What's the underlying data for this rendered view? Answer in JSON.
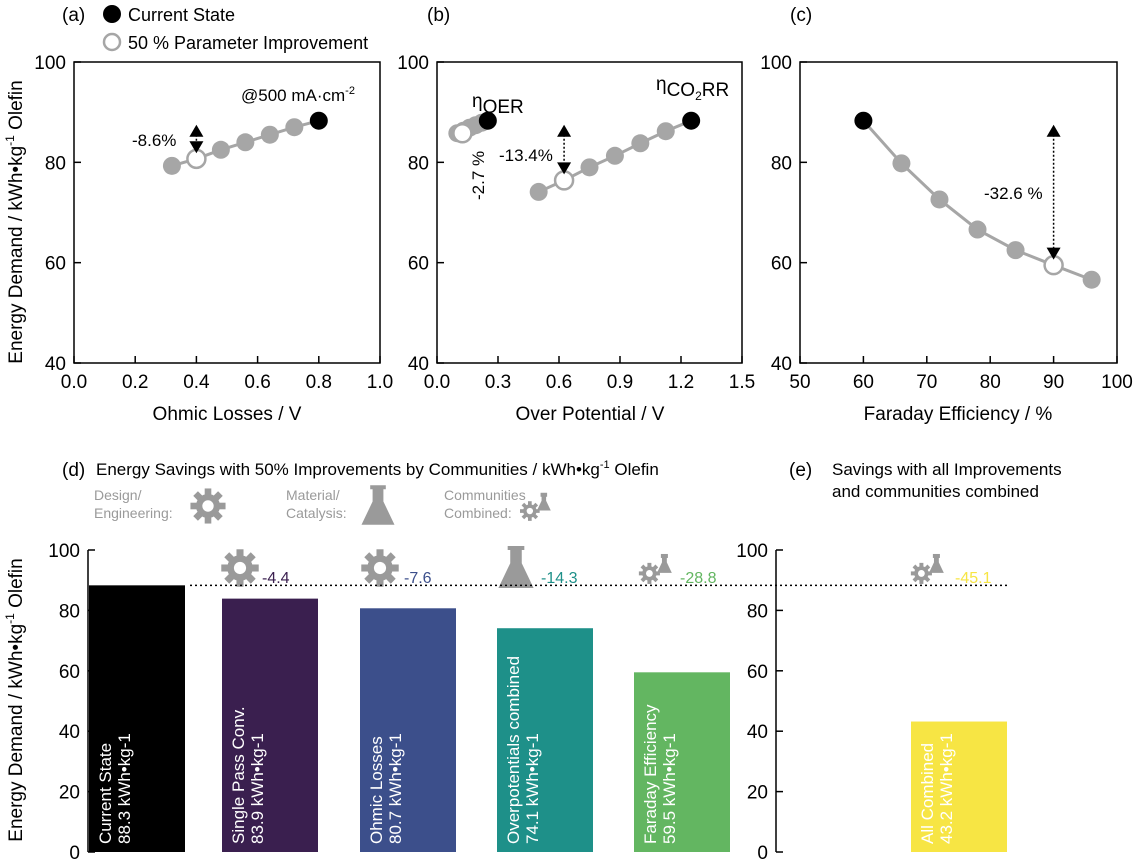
{
  "colors": {
    "gray": "#a6a6a6",
    "black": "#000000",
    "icon_gray": "#9a9a9a",
    "bar_current": "#000000",
    "bar_single_pass": "#3a1f4f",
    "bar_ohmic": "#3c4f8b",
    "bar_overpotentials": "#1e9089",
    "bar_faraday": "#63b661",
    "bar_all": "#f7e544"
  },
  "legend": {
    "current_state": "Current State",
    "improvement": "50 % Parameter Improvement"
  },
  "y_label": "Energy Demand / kWh•kg",
  "y_label_sup": "-1",
  "y_label_tail": " Olefin",
  "chart_data": [
    {
      "panel": "(a)",
      "type": "line",
      "xlabel": "Ohmic Losses / V",
      "xlim": [
        0.0,
        1.0
      ],
      "xticks": [
        "0.0",
        "0.2",
        "0.4",
        "0.6",
        "0.8",
        "1.0"
      ],
      "ylim": [
        40,
        100
      ],
      "yticks": [
        "40",
        "60",
        "80",
        "100"
      ],
      "series": [
        {
          "x": [
            0.32,
            0.4,
            0.48,
            0.56,
            0.64,
            0.72,
            0.8
          ],
          "y": [
            79.3,
            80.7,
            82.5,
            84.0,
            85.5,
            87.0,
            88.3
          ]
        }
      ],
      "current": {
        "x": 0.8,
        "y": 88.3
      },
      "improved": {
        "x": 0.4,
        "y": 80.7
      },
      "arrow_x": 0.4,
      "arrow_from": 87.5,
      "arrow_to": 81.8,
      "annotations": [
        "-8.6%",
        "@500 mA·cm",
        "-2"
      ]
    },
    {
      "panel": "(b)",
      "type": "line",
      "xlabel": "Over Potential / V",
      "xlim": [
        0.0,
        1.5
      ],
      "xticks": [
        "0.0",
        "0.3",
        "0.6",
        "0.9",
        "1.2",
        "1.5"
      ],
      "ylim": [
        40,
        100
      ],
      "yticks": [
        "40",
        "60",
        "80",
        "100"
      ],
      "series": [
        {
          "name": "ηOER",
          "x": [
            0.1,
            0.13,
            0.16,
            0.19,
            0.22,
            0.25
          ],
          "y": [
            85.8,
            86.3,
            86.9,
            87.4,
            87.9,
            88.3
          ]
        },
        {
          "name": "ηCO2RR",
          "x": [
            0.5,
            0.625,
            0.75,
            0.875,
            1.0,
            1.125,
            1.25
          ],
          "y": [
            74.1,
            76.4,
            79.0,
            81.3,
            83.8,
            86.2,
            88.3
          ]
        }
      ],
      "current": [
        {
          "x": 0.25,
          "y": 88.3
        },
        {
          "x": 1.25,
          "y": 88.3
        }
      ],
      "improved": [
        {
          "x": 0.125,
          "y": 85.8
        },
        {
          "x": 0.625,
          "y": 76.4
        }
      ],
      "arrow_x": 0.625,
      "arrow_from": 87.5,
      "arrow_to": 77.6,
      "annotations": [
        "-13.4%",
        "-2.7 %"
      ],
      "labels": {
        "oer_eta": "η",
        "oer_sub": "OER",
        "co2_eta": "η",
        "co2_sub_a": "CO",
        "co2_sub_b": "2",
        "co2_sub_c": "RR"
      }
    },
    {
      "panel": "(c)",
      "type": "line",
      "xlabel": "Faraday Efficiency / %",
      "xlim": [
        50,
        100
      ],
      "xticks": [
        "50",
        "60",
        "70",
        "80",
        "90",
        "100"
      ],
      "ylim": [
        40,
        100
      ],
      "yticks": [
        "40",
        "60",
        "80",
        "100"
      ],
      "series": [
        {
          "x": [
            60,
            66,
            72,
            78,
            84,
            90,
            96
          ],
          "y": [
            88.3,
            79.8,
            72.6,
            66.6,
            62.5,
            59.5,
            56.6
          ]
        }
      ],
      "current": {
        "x": 60,
        "y": 88.3
      },
      "improved": {
        "x": 90,
        "y": 59.5
      },
      "arrow_x": 90,
      "arrow_from": 87.5,
      "arrow_to": 60.6,
      "annotations": [
        "-32.6 %"
      ]
    },
    {
      "panel": "(d)",
      "type": "bar",
      "title": "Energy Savings with 50% Improvements by Communities / kWh•kg",
      "title_sup": "-1",
      "title_tail": " Olefin",
      "ylim": [
        0,
        100
      ],
      "yticks": [
        "0",
        "20",
        "40",
        "60",
        "80",
        "100"
      ],
      "categories": [
        "Current State",
        "Single Pass Conv.",
        "Ohmic Losses",
        "Overpotentials combined",
        "Faraday Efficiency"
      ],
      "values": [
        88.3,
        83.9,
        80.7,
        74.1,
        59.5
      ],
      "value_labels": [
        "88.3 kWh•kg-1",
        "83.9 kWh•kg-1",
        "80.7 kWh•kg-1",
        "74.1 kWh•kg-1",
        "59.5 kWh•kg-1"
      ],
      "savings": [
        "",
        "-4.4",
        "-7.6",
        "-14.3",
        "-28.8"
      ],
      "icons": [
        "",
        "gear-icon",
        "gear-icon",
        "flask-icon",
        "combined-icon"
      ],
      "legend_items": [
        {
          "line1": "Design/",
          "line2": "Engineering:",
          "icon": "gear-icon"
        },
        {
          "line1": "Material/",
          "line2": "Catalysis:",
          "icon": "flask-icon"
        },
        {
          "line1": "Communities",
          "line2": "Combined:",
          "icon": "combined-icon"
        }
      ]
    },
    {
      "panel": "(e)",
      "type": "bar",
      "title_line1": "Savings with all Improvements",
      "title_line2": "and communities combined",
      "ylim": [
        0,
        100
      ],
      "yticks": [
        "0",
        "20",
        "40",
        "60",
        "80",
        "100"
      ],
      "categories": [
        "All Combined"
      ],
      "values": [
        43.2
      ],
      "value_labels": [
        "43.2 kWh•kg-1"
      ],
      "savings": [
        "-45.1"
      ],
      "icons": [
        "combined-icon"
      ]
    }
  ]
}
